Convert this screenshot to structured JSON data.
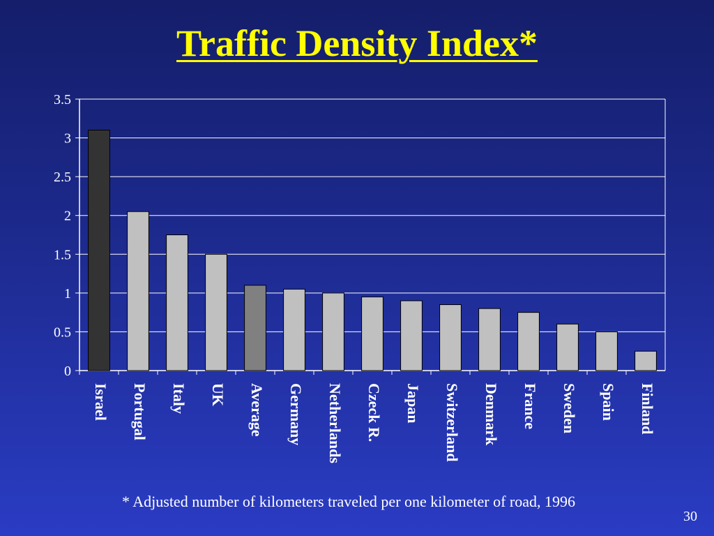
{
  "slide": {
    "title": "Traffic Density Index*",
    "footnote": "* Adjusted number of kilometers traveled per one kilometer of road, 1996",
    "page_number": "30"
  },
  "colors": {
    "title": "#ffff00",
    "text": "#ffffff",
    "bar_default": "#c0c0c0",
    "bar_israel": "#333333",
    "bar_average": "#808080",
    "bar_stroke": "#000000",
    "gridline": "#ffffff",
    "background_top": "#141e6a",
    "background_bottom": "#2a3cc4"
  },
  "chart_data": {
    "type": "bar",
    "categories": [
      "Israel",
      "Portugal",
      "Italy",
      "UK",
      "Average",
      "Germany",
      "Netherlands",
      "Czeck R.",
      "Japan",
      "Switzerland",
      "Denmark",
      "France",
      "Sweden",
      "Spain",
      "Finland"
    ],
    "values": [
      3.1,
      2.05,
      1.75,
      1.5,
      1.1,
      1.05,
      1.0,
      0.95,
      0.9,
      0.85,
      0.8,
      0.75,
      0.6,
      0.5,
      0.25
    ],
    "bar_colors": [
      "#333333",
      "#c0c0c0",
      "#c0c0c0",
      "#c0c0c0",
      "#808080",
      "#c0c0c0",
      "#c0c0c0",
      "#c0c0c0",
      "#c0c0c0",
      "#c0c0c0",
      "#c0c0c0",
      "#c0c0c0",
      "#c0c0c0",
      "#c0c0c0",
      "#c0c0c0"
    ],
    "ylim": [
      0,
      3.5
    ],
    "yticks": [
      "0",
      "0.5",
      "1",
      "1.5",
      "2",
      "2.5",
      "3",
      "3.5"
    ],
    "ytick_values": [
      0,
      0.5,
      1,
      1.5,
      2,
      2.5,
      3,
      3.5
    ],
    "xlabel_orientation": "vertical",
    "grid": true,
    "legend": "none"
  }
}
